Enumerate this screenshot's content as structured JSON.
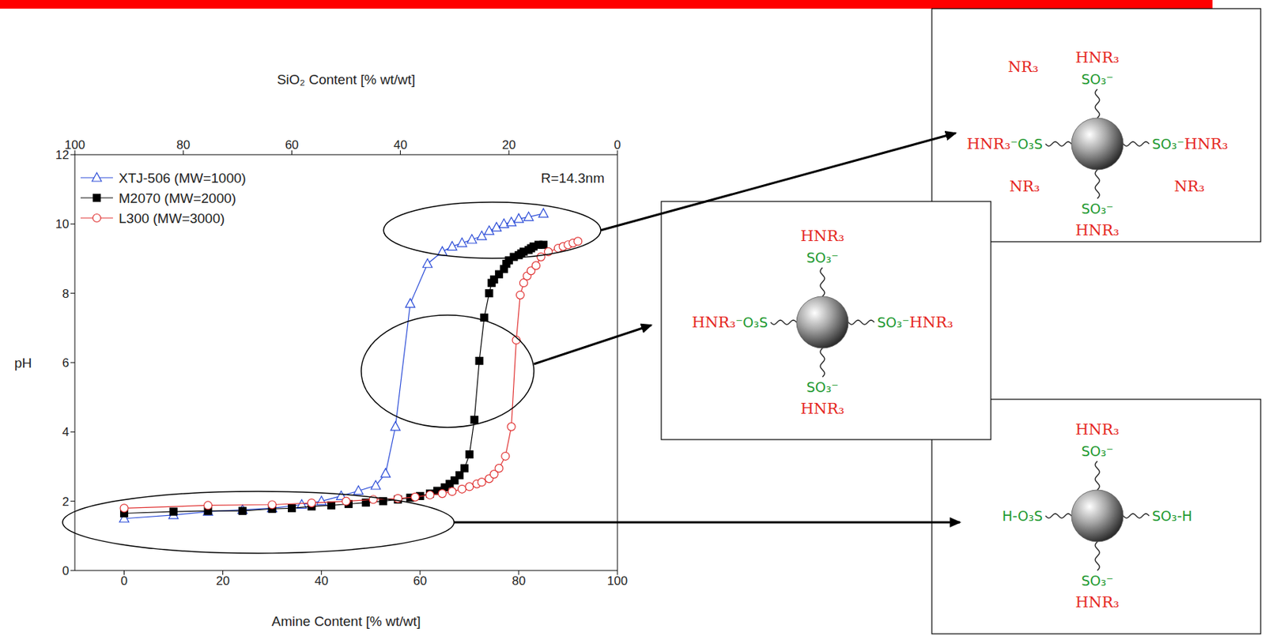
{
  "chart_data": {
    "type": "scatter",
    "x_label": "Amine Content [% wt/wt]",
    "y_label": "pH",
    "x2_label": "SiO₂ Content [% wt/wt]",
    "xlim": [
      -10,
      100
    ],
    "xticks": [
      0,
      20,
      40,
      60,
      80,
      100
    ],
    "x2lim": [
      100,
      0
    ],
    "x2ticks": [
      100,
      80,
      60,
      40,
      20,
      0
    ],
    "ylim": [
      0,
      12
    ],
    "yticks": [
      0,
      2,
      4,
      6,
      8,
      10,
      12
    ],
    "grid": false,
    "legend": "upper left",
    "annotations": [
      "R=14.3nm"
    ],
    "series": [
      {
        "name": "XTJ-506 (MW=1000)",
        "color": "#2a4bd7",
        "marker": "open-triangle",
        "line_style": "solid",
        "x": [
          0,
          10,
          17,
          24,
          30,
          36,
          40,
          44,
          47.5,
          51,
          53,
          55,
          58,
          61.5,
          64.5,
          66.5,
          68.5,
          70.5,
          72.5,
          74,
          75.5,
          77,
          78.5,
          80,
          82,
          85
        ],
        "values": [
          1.5,
          1.6,
          1.7,
          1.75,
          1.8,
          1.9,
          2.0,
          2.15,
          2.3,
          2.45,
          2.8,
          4.15,
          7.7,
          8.85,
          9.2,
          9.35,
          9.45,
          9.55,
          9.65,
          9.8,
          9.9,
          10.0,
          10.05,
          10.15,
          10.2,
          10.3
        ]
      },
      {
        "name": "M2070 (MW=2000)",
        "color": "#000000",
        "marker": "square",
        "line_style": "solid",
        "x": [
          0,
          10,
          17,
          24,
          30,
          34,
          38,
          42,
          45.5,
          49,
          52.5,
          55.5,
          58,
          60,
          62,
          63.5,
          65,
          66,
          67,
          68,
          69,
          70,
          71,
          72,
          73,
          74,
          74.5,
          75,
          76,
          77,
          77.5,
          78,
          79,
          80,
          80.5,
          81,
          82,
          82.5,
          83,
          84,
          85
        ],
        "values": [
          1.65,
          1.7,
          1.72,
          1.72,
          1.78,
          1.8,
          1.85,
          1.88,
          1.92,
          1.96,
          2.0,
          2.05,
          2.1,
          2.15,
          2.22,
          2.3,
          2.4,
          2.5,
          2.6,
          2.75,
          2.95,
          3.35,
          4.35,
          6.05,
          7.3,
          8.0,
          8.3,
          8.4,
          8.55,
          8.7,
          8.85,
          8.95,
          9.05,
          9.1,
          9.15,
          9.2,
          9.25,
          9.3,
          9.35,
          9.4,
          9.4
        ]
      },
      {
        "name": "L300 (MW=3000)",
        "color": "#e03030",
        "marker": "open-circle",
        "line_style": "solid",
        "x": [
          0,
          17,
          30,
          38,
          45,
          50.5,
          55.5,
          59,
          62,
          64.5,
          66.5,
          68.5,
          70,
          71.5,
          72.5,
          74,
          75,
          76,
          77.3,
          78.5,
          79.5,
          80.3,
          81,
          81.7,
          82.5,
          83.5,
          84.5,
          86,
          88,
          89,
          90,
          91,
          92
        ],
        "values": [
          1.8,
          1.88,
          1.9,
          1.95,
          2.0,
          2.05,
          2.08,
          2.12,
          2.18,
          2.22,
          2.28,
          2.35,
          2.42,
          2.5,
          2.55,
          2.65,
          2.78,
          2.95,
          3.3,
          4.15,
          6.65,
          7.95,
          8.3,
          8.5,
          8.65,
          8.8,
          9.05,
          9.2,
          9.3,
          9.35,
          9.4,
          9.45,
          9.5
        ]
      }
    ]
  },
  "diagrams": [
    {
      "top": "HNR₃",
      "top_group": "SO₃⁻",
      "left": "HNR₃",
      "left_group": "⁻O₃S",
      "right_group": "SO₃⁻",
      "right": "HNR₃",
      "bottom_group": "SO₃⁻",
      "bottom": "HNR₃",
      "free_amine": [
        "NR₃",
        "NR₃",
        "NR₃"
      ]
    },
    {
      "top": "HNR₃",
      "top_group": "SO₃⁻",
      "left": "HNR₃",
      "left_group": "⁻O₃S",
      "right_group": "SO₃⁻",
      "right": "HNR₃",
      "bottom_group": "SO₃⁻",
      "bottom": "HNR₃"
    },
    {
      "top": "HNR₃",
      "top_group": "SO₃⁻",
      "left_group": "H-O₃S",
      "right_group": "SO₃-H",
      "bottom_group": "SO₃⁻",
      "bottom": "HNR₃"
    }
  ]
}
